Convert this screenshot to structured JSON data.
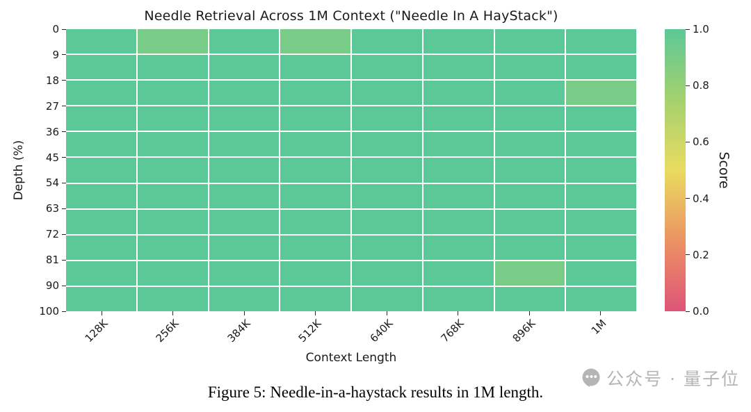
{
  "chart_data": {
    "type": "heatmap",
    "title": "Needle Retrieval Across 1M Context (\"Needle In A HayStack\")",
    "xlabel": "Context Length",
    "ylabel": "Depth (%)",
    "x_categories": [
      "128K",
      "256K",
      "384K",
      "512K",
      "640K",
      "768K",
      "896K",
      "1M"
    ],
    "y_tick_labels": [
      "0",
      "9",
      "18",
      "27",
      "36",
      "45",
      "54",
      "63",
      "72",
      "81",
      "90",
      "100"
    ],
    "value_range": [
      0.0,
      1.0
    ],
    "grid": true,
    "values": [
      [
        1.0,
        0.9,
        1.0,
        0.9,
        1.0,
        1.0,
        1.0,
        1.0
      ],
      [
        1.0,
        1.0,
        1.0,
        1.0,
        1.0,
        1.0,
        1.0,
        1.0
      ],
      [
        1.0,
        1.0,
        1.0,
        1.0,
        1.0,
        1.0,
        1.0,
        0.9
      ],
      [
        1.0,
        1.0,
        1.0,
        1.0,
        1.0,
        1.0,
        1.0,
        1.0
      ],
      [
        1.0,
        1.0,
        1.0,
        1.0,
        1.0,
        1.0,
        1.0,
        1.0
      ],
      [
        1.0,
        1.0,
        1.0,
        1.0,
        1.0,
        1.0,
        1.0,
        1.0
      ],
      [
        1.0,
        1.0,
        1.0,
        1.0,
        1.0,
        1.0,
        1.0,
        1.0
      ],
      [
        1.0,
        1.0,
        1.0,
        1.0,
        1.0,
        1.0,
        1.0,
        1.0
      ],
      [
        1.0,
        1.0,
        1.0,
        1.0,
        1.0,
        1.0,
        1.0,
        1.0
      ],
      [
        1.0,
        1.0,
        1.0,
        1.0,
        1.0,
        1.0,
        0.9,
        1.0
      ],
      [
        1.0,
        1.0,
        1.0,
        1.0,
        1.0,
        1.0,
        1.0,
        1.0
      ]
    ],
    "colormap": [
      {
        "v": 0.0,
        "c": "#dd5478"
      },
      {
        "v": 0.25,
        "c": "#ec9263"
      },
      {
        "v": 0.5,
        "c": "#e9dc60"
      },
      {
        "v": 0.75,
        "c": "#a4d16f"
      },
      {
        "v": 1.0,
        "c": "#5cc897"
      }
    ],
    "colorbar": {
      "label": "Score",
      "ticks": [
        1.0,
        0.8,
        0.6,
        0.4,
        0.2,
        0.0
      ],
      "tick_labels": [
        "1.0",
        "0.8",
        "0.6",
        "0.4",
        "0.2",
        "0.0"
      ]
    }
  },
  "caption": {
    "text": "Figure 5: Needle-in-a-haystack results in 1M length."
  },
  "watermark": {
    "text": "公众号 · 量子位",
    "icon": "chat-bubble-icon",
    "color": "#b5b5b5"
  }
}
